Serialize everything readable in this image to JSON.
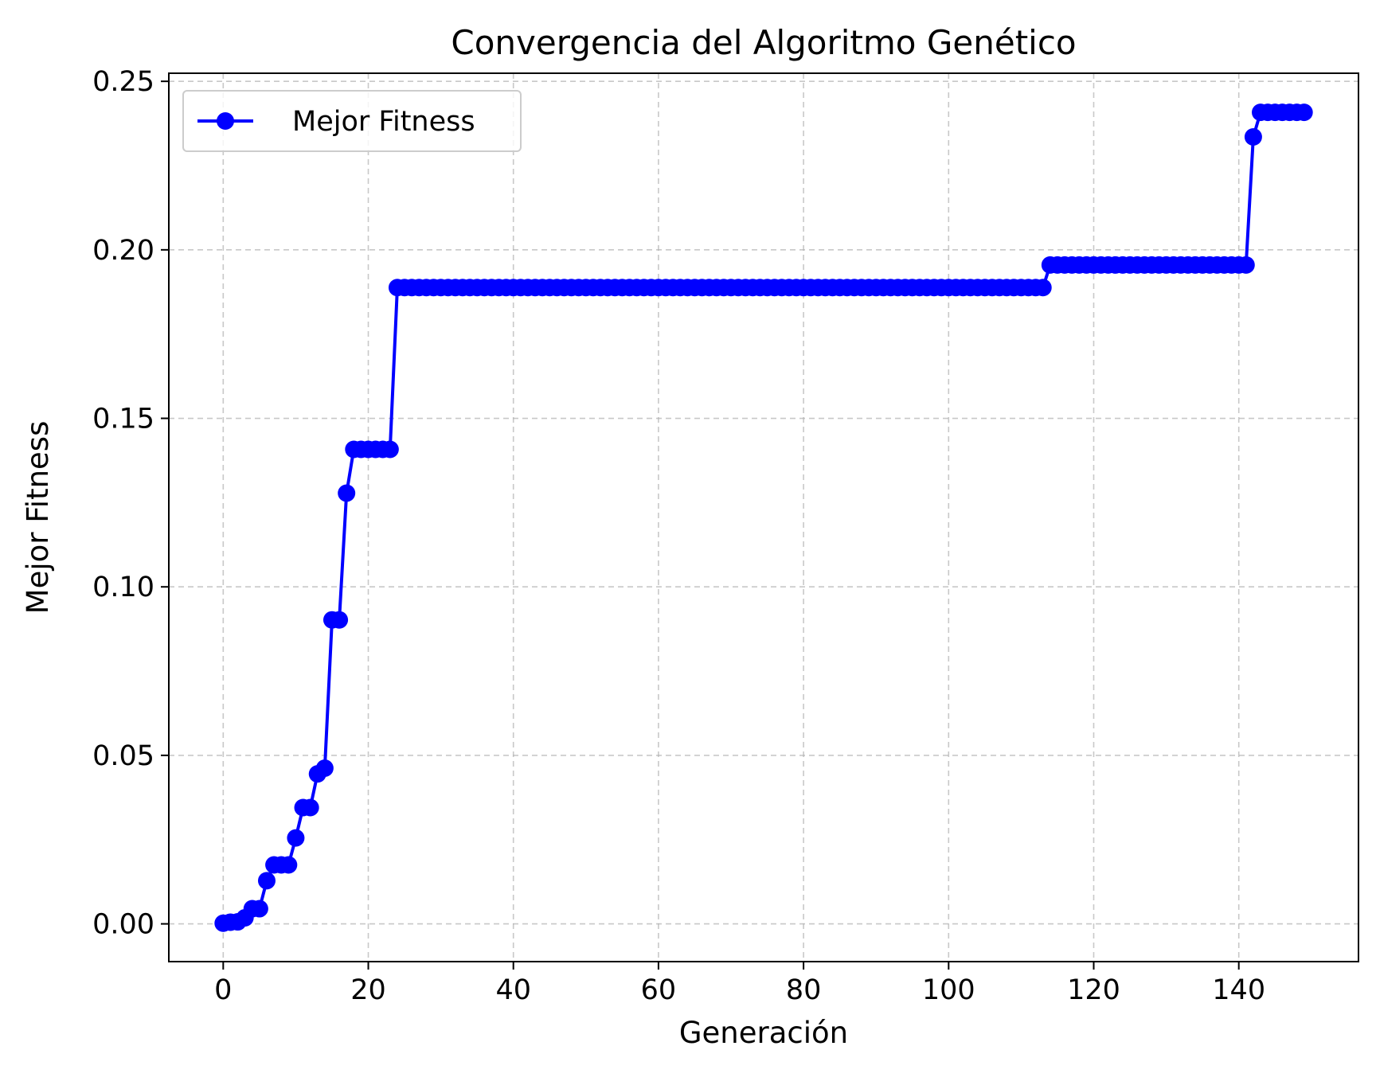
{
  "chart_data": {
    "type": "line",
    "title": "Convergencia del Algoritmo Genético",
    "xlabel": "Generación",
    "ylabel": "Mejor Fitness",
    "xlim": [
      -7.5,
      156.5
    ],
    "ylim": [
      -0.0112,
      0.2524
    ],
    "xticks": [
      0,
      20,
      40,
      60,
      80,
      100,
      120,
      140
    ],
    "yticks": [
      0.0,
      0.05,
      0.1,
      0.15,
      0.2,
      0.25
    ],
    "xtick_labels": [
      "0",
      "20",
      "40",
      "60",
      "80",
      "100",
      "120",
      "140"
    ],
    "ytick_labels": [
      "0.00",
      "0.05",
      "0.10",
      "0.15",
      "0.20",
      "0.25"
    ],
    "grid": true,
    "grid_style": "dashed",
    "legend_placement": "top-left",
    "line_color": "#0000ff",
    "marker": "circle",
    "series": [
      {
        "name": "Mejor Fitness",
        "segments": [
          {
            "x_start": 0,
            "x_end": 0,
            "y": 0.0002
          },
          {
            "x_start": 1,
            "x_end": 1,
            "y": 0.0005
          },
          {
            "x_start": 2,
            "x_end": 2,
            "y": 0.0006
          },
          {
            "x_start": 3,
            "x_end": 3,
            "y": 0.0018
          },
          {
            "x_start": 4,
            "x_end": 5,
            "y": 0.0045
          },
          {
            "x_start": 6,
            "x_end": 6,
            "y": 0.0128
          },
          {
            "x_start": 7,
            "x_end": 9,
            "y": 0.0175
          },
          {
            "x_start": 10,
            "x_end": 10,
            "y": 0.0255
          },
          {
            "x_start": 11,
            "x_end": 12,
            "y": 0.0345
          },
          {
            "x_start": 13,
            "x_end": 13,
            "y": 0.0445
          },
          {
            "x_start": 14,
            "x_end": 14,
            "y": 0.0462
          },
          {
            "x_start": 15,
            "x_end": 16,
            "y": 0.0902
          },
          {
            "x_start": 17,
            "x_end": 17,
            "y": 0.1278
          },
          {
            "x_start": 18,
            "x_end": 23,
            "y": 0.1408
          },
          {
            "x_start": 24,
            "x_end": 113,
            "y": 0.1888
          },
          {
            "x_start": 114,
            "x_end": 141,
            "y": 0.1955
          },
          {
            "x_start": 142,
            "x_end": 142,
            "y": 0.2335
          },
          {
            "x_start": 143,
            "x_end": 149,
            "y": 0.2408
          }
        ]
      }
    ]
  }
}
